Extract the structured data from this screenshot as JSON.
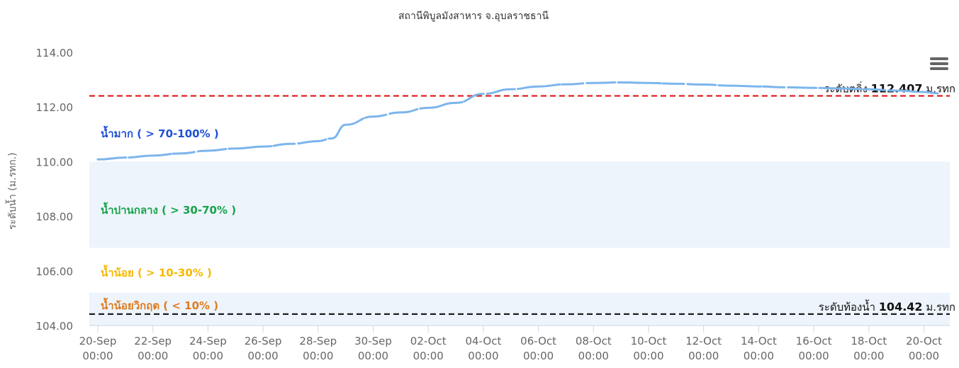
{
  "chart_data": {
    "type": "line",
    "title": "สถานีพิบูลมังสาหาร จ.อุบลราชธานี",
    "ylabel": "ระดับน้ำ (ม.รทก.)",
    "ylim": [
      104,
      114
    ],
    "y_ticks": [
      "104.00",
      "106.00",
      "108.00",
      "110.00",
      "112.00",
      "114.00"
    ],
    "x_ticks": [
      {
        "date": "20-Sep",
        "time": "00:00"
      },
      {
        "date": "22-Sep",
        "time": "00:00"
      },
      {
        "date": "24-Sep",
        "time": "00:00"
      },
      {
        "date": "26-Sep",
        "time": "00:00"
      },
      {
        "date": "28-Sep",
        "time": "00:00"
      },
      {
        "date": "30-Sep",
        "time": "00:00"
      },
      {
        "date": "02-Oct",
        "time": "00:00"
      },
      {
        "date": "04-Oct",
        "time": "00:00"
      },
      {
        "date": "06-Oct",
        "time": "00:00"
      },
      {
        "date": "08-Oct",
        "time": "00:00"
      },
      {
        "date": "10-Oct",
        "time": "00:00"
      },
      {
        "date": "12-Oct",
        "time": "00:00"
      },
      {
        "date": "14-Oct",
        "time": "00:00"
      },
      {
        "date": "16-Oct",
        "time": "00:00"
      },
      {
        "date": "18-Oct",
        "time": "00:00"
      },
      {
        "date": "20-Oct",
        "time": "00:00"
      }
    ],
    "series": [
      {
        "color": "#7cb5ec",
        "x": [
          "20-Sep",
          "21-Sep",
          "22-Sep",
          "23-Sep",
          "24-Sep",
          "25-Sep",
          "26-Sep",
          "27-Sep",
          "28-Sep",
          "28-Sep 12:00",
          "29-Sep",
          "30-Sep",
          "01-Oct",
          "02-Oct",
          "03-Oct",
          "04-Oct",
          "05-Oct",
          "06-Oct",
          "07-Oct",
          "08-Oct",
          "09-Oct",
          "10-Oct",
          "11-Oct",
          "12-Oct",
          "13-Oct",
          "14-Oct",
          "15-Oct",
          "16-Oct",
          "17-Oct",
          "18-Oct",
          "19-Oct",
          "20-Oct",
          "20-Oct 12:00"
        ],
        "values": [
          110.08,
          110.15,
          110.22,
          110.3,
          110.4,
          110.48,
          110.55,
          110.65,
          110.75,
          110.85,
          111.35,
          111.65,
          111.8,
          111.97,
          112.15,
          112.48,
          112.65,
          112.75,
          112.83,
          112.88,
          112.9,
          112.88,
          112.85,
          112.82,
          112.78,
          112.75,
          112.72,
          112.7,
          112.68,
          112.65,
          112.6,
          112.55,
          112.5
        ]
      }
    ],
    "bands": [
      {
        "label": "น้ำมาก ( > 70-100% )",
        "from": 110.0,
        "to": 114.0,
        "label_value": 111.05,
        "fill": "#ffffff",
        "text_color": "#1f4fd8"
      },
      {
        "label": "น้ำปานกลาง ( > 30-70% )",
        "from": 106.85,
        "to": 110.0,
        "label_value": 108.25,
        "fill": "#edf4fb",
        "text_color": "#17a34a"
      },
      {
        "label": "น้ำน้อย ( > 10-30% )",
        "from": 105.2,
        "to": 106.85,
        "label_value": 105.95,
        "fill": "#ffffff",
        "text_color": "#f5b800"
      },
      {
        "label": "น้ำน้อยวิกฤต ( < 10% )",
        "from": 104.0,
        "to": 105.2,
        "label_value": 104.75,
        "fill": "#edf4fb",
        "text_color": "#e07b20"
      }
    ],
    "reference_lines": [
      {
        "label_prefix": "ระดับตลิ่ง",
        "value_text": "112.407",
        "unit": "ม.รทก",
        "value": 112.407,
        "color": "#e02020"
      },
      {
        "label_prefix": "ระดับท้องน้ำ",
        "value_text": "104.42",
        "unit": "ม.รทก",
        "value": 104.42,
        "color": "#111111"
      }
    ],
    "grid": false,
    "legend": "none"
  },
  "toolbar": {
    "menu_icon": "hamburger-menu-icon"
  }
}
